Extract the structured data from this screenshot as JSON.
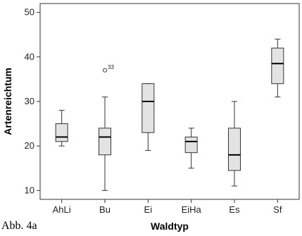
{
  "caption": "Abb. 4a",
  "colors": {
    "box_fill": "#e3e3e3",
    "stroke": "#333333",
    "median": "#000000"
  },
  "chart_data": {
    "type": "boxplot",
    "xlabel": "Waldtyp",
    "ylabel": "Artenreichtum",
    "ylim": [
      8,
      52
    ],
    "yticks": [
      10,
      20,
      30,
      40,
      50
    ],
    "grid": false,
    "categories": [
      "AhLi",
      "Bu",
      "Ei",
      "EiHa",
      "Es",
      "Sf"
    ],
    "boxes": [
      {
        "category": "AhLi",
        "min": 20,
        "q1": 21,
        "median": 22,
        "q3": 25,
        "max": 28
      },
      {
        "category": "Bu",
        "min": 10,
        "q1": 18,
        "median": 22,
        "q3": 24,
        "max": 31,
        "outliers": [
          {
            "value": 37,
            "label": "33"
          }
        ]
      },
      {
        "category": "Ei",
        "min": 19,
        "q1": 23,
        "median": 30,
        "q3": 34,
        "max": 34
      },
      {
        "category": "EiHa",
        "min": 15,
        "q1": 18.5,
        "median": 21,
        "q3": 22,
        "max": 24
      },
      {
        "category": "Es",
        "min": 11,
        "q1": 14.5,
        "median": 18,
        "q3": 24,
        "max": 30
      },
      {
        "category": "Sf",
        "min": 31,
        "q1": 34,
        "median": 38.5,
        "q3": 42,
        "max": 44
      }
    ]
  }
}
